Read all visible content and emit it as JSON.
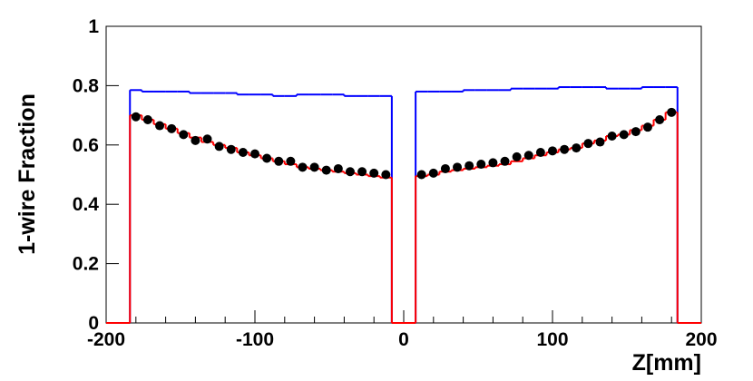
{
  "chart_data": {
    "type": "histogram",
    "x_label": "Z[mm]",
    "y_label": "1-wire Fraction",
    "bins": [
      -200,
      -192,
      -184,
      -176,
      -168,
      -160,
      -152,
      -144,
      -136,
      -128,
      -120,
      -112,
      -104,
      -96,
      -88,
      -80,
      -72,
      -64,
      -56,
      -48,
      -40,
      -32,
      -24,
      -16,
      -8,
      0,
      8,
      16,
      24,
      32,
      40,
      48,
      56,
      64,
      72,
      80,
      88,
      96,
      104,
      112,
      120,
      128,
      136,
      144,
      152,
      160,
      168,
      176,
      184,
      192,
      200
    ],
    "series": [
      {
        "name": "blue",
        "style": "step",
        "color": "#0000ff",
        "values": [
          0,
          0,
          0.785,
          0.78,
          0.78,
          0.78,
          0.78,
          0.775,
          0.775,
          0.775,
          0.775,
          0.77,
          0.77,
          0.77,
          0.765,
          0.765,
          0.77,
          0.77,
          0.77,
          0.77,
          0.765,
          0.765,
          0.765,
          0.765,
          0,
          0,
          0.78,
          0.78,
          0.78,
          0.78,
          0.785,
          0.785,
          0.785,
          0.785,
          0.79,
          0.79,
          0.79,
          0.79,
          0.795,
          0.795,
          0.795,
          0.795,
          0.79,
          0.79,
          0.79,
          0.795,
          0.795,
          0.795,
          0,
          0
        ]
      },
      {
        "name": "red",
        "style": "step",
        "color": "#ff0000",
        "values": [
          0,
          0,
          0.7,
          0.685,
          0.67,
          0.655,
          0.64,
          0.625,
          0.61,
          0.6,
          0.59,
          0.575,
          0.565,
          0.555,
          0.545,
          0.535,
          0.525,
          0.52,
          0.515,
          0.51,
          0.505,
          0.5,
          0.495,
          0.49,
          0,
          0,
          0.495,
          0.5,
          0.51,
          0.515,
          0.52,
          0.525,
          0.53,
          0.535,
          0.545,
          0.555,
          0.565,
          0.575,
          0.585,
          0.59,
          0.605,
          0.615,
          0.63,
          0.635,
          0.65,
          0.665,
          0.685,
          0.71,
          0,
          0
        ]
      },
      {
        "name": "data",
        "style": "points",
        "color": "#000000",
        "values": [
          null,
          null,
          0.695,
          0.685,
          0.665,
          0.655,
          0.635,
          0.615,
          0.62,
          0.595,
          0.585,
          0.575,
          0.57,
          0.555,
          0.545,
          0.545,
          0.525,
          0.525,
          0.515,
          0.52,
          0.51,
          0.51,
          0.505,
          0.5,
          null,
          null,
          0.5,
          0.505,
          0.52,
          0.525,
          0.53,
          0.535,
          0.54,
          0.545,
          0.56,
          0.565,
          0.575,
          0.58,
          0.585,
          0.59,
          0.605,
          0.61,
          0.63,
          0.635,
          0.645,
          0.66,
          0.685,
          0.71,
          null,
          null
        ]
      }
    ],
    "xlim": [
      -200,
      200
    ],
    "ylim": [
      0,
      1
    ],
    "xticks": [
      -200,
      -100,
      0,
      100,
      200
    ],
    "yticks": [
      0,
      0.2,
      0.4,
      0.6,
      0.8,
      1
    ]
  }
}
